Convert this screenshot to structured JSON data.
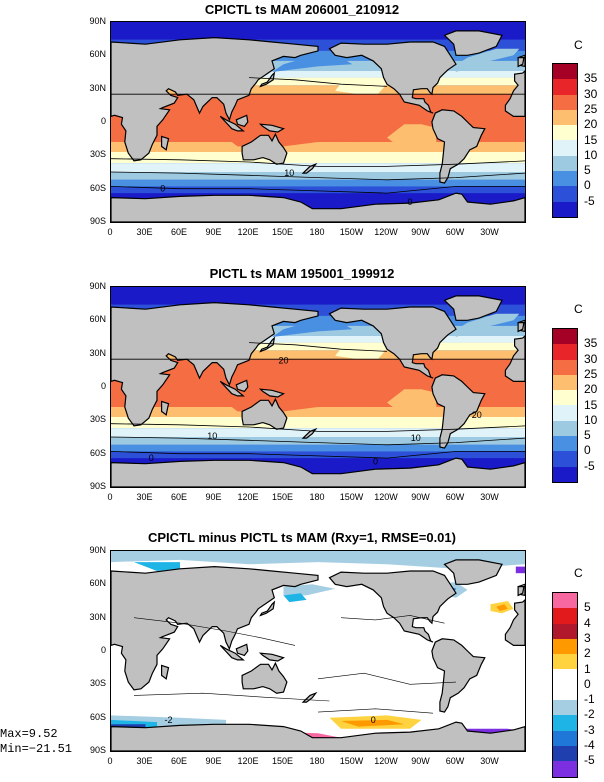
{
  "chart_data": [
    {
      "type": "heatmap",
      "title": "CPICTL ts MAM 206001_210912",
      "unit": "C",
      "lat_ticks": [
        "90N",
        "60N",
        "30N",
        "0",
        "30S",
        "60S",
        "90S"
      ],
      "lon_ticks": [
        "0",
        "30E",
        "60E",
        "90E",
        "120E",
        "150E",
        "180",
        "150W",
        "120W",
        "90W",
        "60W",
        "30W"
      ],
      "colorbar_levels": [
        "35",
        "30",
        "25",
        "20",
        "15",
        "10",
        "5",
        "0",
        "-5"
      ],
      "colorbar_colors": [
        "#a50026",
        "#e8262a",
        "#f46d43",
        "#fdbf6f",
        "#ffffd0",
        "#e0f3f8",
        "#9ecae1",
        "#4a90e2",
        "#2c50d8",
        "#1a1ac8"
      ],
      "contour_labels": [
        "10",
        "0",
        "0"
      ],
      "band_values": [
        -2,
        0,
        5,
        12,
        18,
        23,
        27,
        28,
        27,
        25,
        20,
        12,
        4,
        -2,
        -5
      ]
    },
    {
      "type": "heatmap",
      "title": "PICTL ts MAM 195001_199912",
      "unit": "C",
      "lat_ticks": [
        "90N",
        "60N",
        "30N",
        "0",
        "30S",
        "60S",
        "90S"
      ],
      "lon_ticks": [
        "0",
        "30E",
        "60E",
        "90E",
        "120E",
        "150E",
        "180",
        "150W",
        "120W",
        "90W",
        "60W",
        "30W"
      ],
      "colorbar_levels": [
        "35",
        "30",
        "25",
        "20",
        "15",
        "10",
        "5",
        "0",
        "-5"
      ],
      "colorbar_colors": [
        "#a50026",
        "#e8262a",
        "#f46d43",
        "#fdbf6f",
        "#ffffd0",
        "#e0f3f8",
        "#9ecae1",
        "#4a90e2",
        "#2c50d8",
        "#1a1ac8"
      ],
      "contour_labels": [
        "20",
        "20",
        "10",
        "10",
        "0",
        "0"
      ],
      "band_values": [
        -2,
        0,
        5,
        12,
        18,
        23,
        27,
        28,
        27,
        25,
        20,
        12,
        4,
        -2,
        -5
      ]
    },
    {
      "type": "heatmap",
      "title": "CPICTL minus PICTL ts MAM (Rxy=1, RMSE=0.01)",
      "unit": "C",
      "lat_ticks": [
        "90N",
        "60N",
        "30N",
        "0",
        "30S",
        "60S",
        "90S"
      ],
      "lon_ticks": [
        "0",
        "30E",
        "60E",
        "90E",
        "120E",
        "150E",
        "180",
        "150W",
        "120W",
        "90W",
        "60W",
        "30W"
      ],
      "colorbar_levels": [
        "5",
        "4",
        "3",
        "2",
        "1",
        "0",
        "-1",
        "-2",
        "-3",
        "-4",
        "-5"
      ],
      "colorbar_colors": [
        "#f768a1",
        "#e31a1c",
        "#b2182b",
        "#ff9900",
        "#ffd23f",
        "#ffffff",
        "#ffffff",
        "#a6cee3",
        "#1fb4e6",
        "#1f78d8",
        "#1f3fae",
        "#7b2fe0"
      ],
      "contour_labels": [
        "0",
        "-2"
      ],
      "max_text": "Max=9.52",
      "min_text": "Min=−21.51"
    }
  ]
}
